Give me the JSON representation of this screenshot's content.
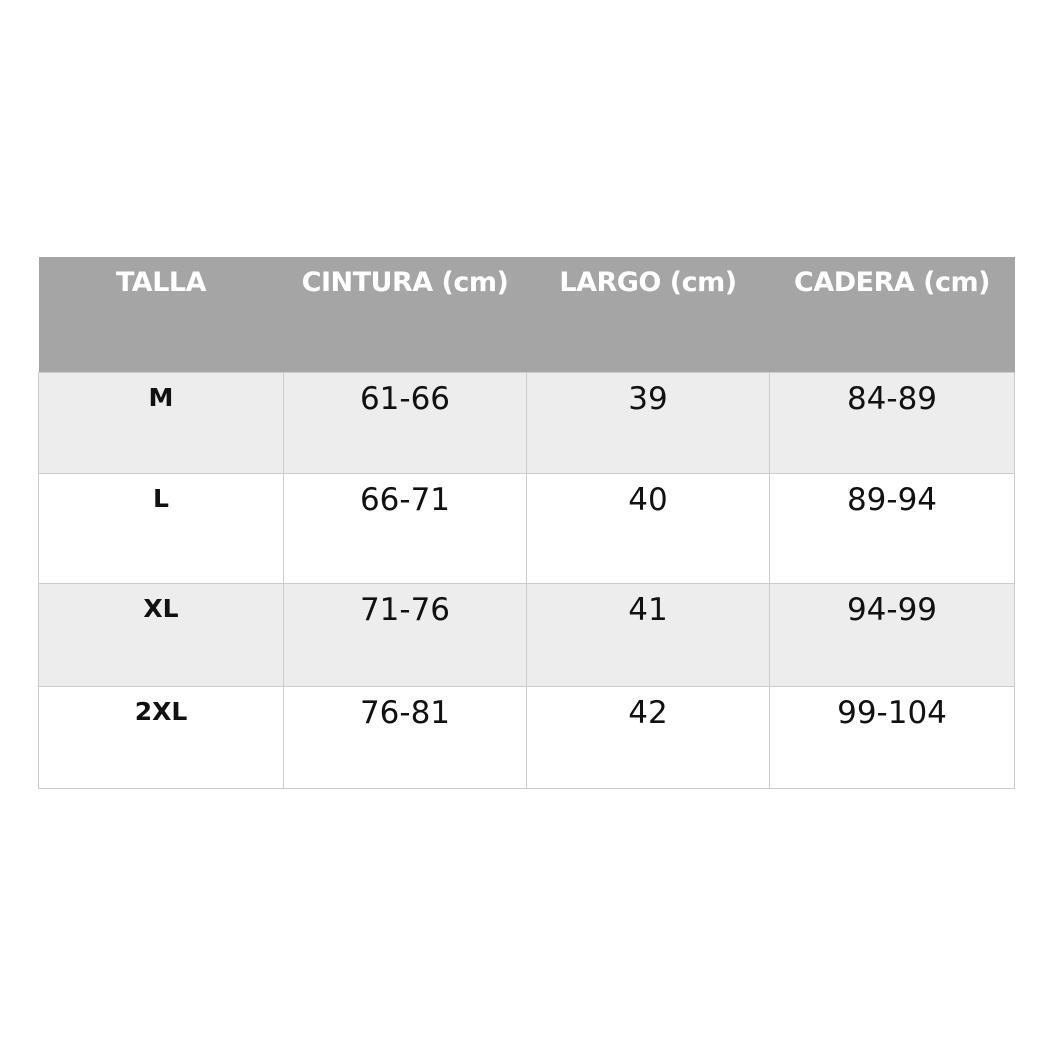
{
  "table": {
    "headers": [
      "TALLA",
      "CINTURA (cm)",
      "LARGO (cm)",
      "CADERA (cm)"
    ],
    "rows": [
      [
        "M",
        "61-66",
        "39",
        "84-89"
      ],
      [
        "L",
        "66-71",
        "40",
        "89-94"
      ],
      [
        "XL",
        "71-76",
        "41",
        "94-99"
      ],
      [
        "2XL",
        "76-81",
        "42",
        "99-104"
      ]
    ]
  },
  "colors": {
    "header_bg": "#a5a5a5",
    "header_text": "#ffffff",
    "row_alt_bg": "#ededed",
    "border": "#cccccc"
  }
}
